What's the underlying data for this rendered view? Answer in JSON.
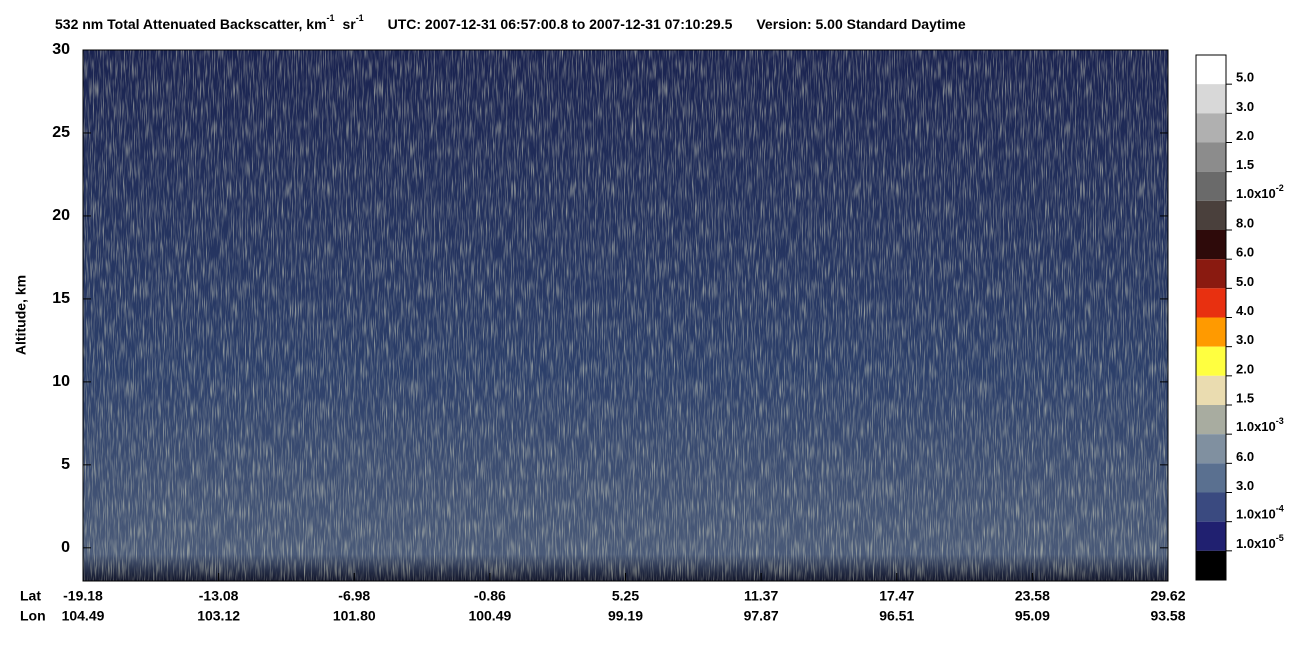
{
  "chart_data": {
    "type": "heatmap",
    "title_parts": [
      {
        "text": "532 nm Total Attenuated Backscatter, km",
        "sup": "-1"
      },
      {
        "text": "sr",
        "sup": "-1"
      }
    ],
    "utc": "UTC:  2007-12-31 06:57:00.8  to  2007-12-31 07:10:29.5",
    "version": "Version: 5.00  Standard  Daytime",
    "ylabel": "Altitude, km",
    "ylim": [
      -2,
      30
    ],
    "yticks": [
      0,
      5,
      10,
      15,
      20,
      25,
      30
    ],
    "x_rows": [
      {
        "name": "Lat",
        "labels": [
          "-19.18",
          "-13.08",
          "-6.98",
          "-0.86",
          "5.25",
          "11.37",
          "17.47",
          "23.58",
          "29.62"
        ]
      },
      {
        "name": "Lon",
        "labels": [
          "104.49",
          "103.12",
          "101.80",
          "100.49",
          "99.19",
          "97.87",
          "96.51",
          "95.09",
          "93.58"
        ]
      }
    ],
    "colorbar": {
      "colors": [
        "#ffffff",
        "#d8d8d8",
        "#b0b0b0",
        "#8c8c8c",
        "#6a6a6a",
        "#4a403c",
        "#2e0a0a",
        "#8a1a10",
        "#e83010",
        "#ff9a00",
        "#ffff40",
        "#eadcb0",
        "#a8aca0",
        "#8090a0",
        "#5a7090",
        "#3a4a80",
        "#202070",
        "#000000"
      ],
      "labels": [
        "5.0",
        "3.0",
        "2.0",
        "1.5",
        {
          "text": "1.0x10",
          "sup": "-2"
        },
        "8.0",
        "6.0",
        "5.0",
        "4.0",
        "3.0",
        "2.0",
        "1.5",
        {
          "text": "1.0x10",
          "sup": "-3"
        },
        "6.0",
        "3.0",
        {
          "text": "1.0x10",
          "sup": "-4"
        },
        {
          "text": "1.0x10",
          "sup": "-5"
        }
      ]
    }
  }
}
